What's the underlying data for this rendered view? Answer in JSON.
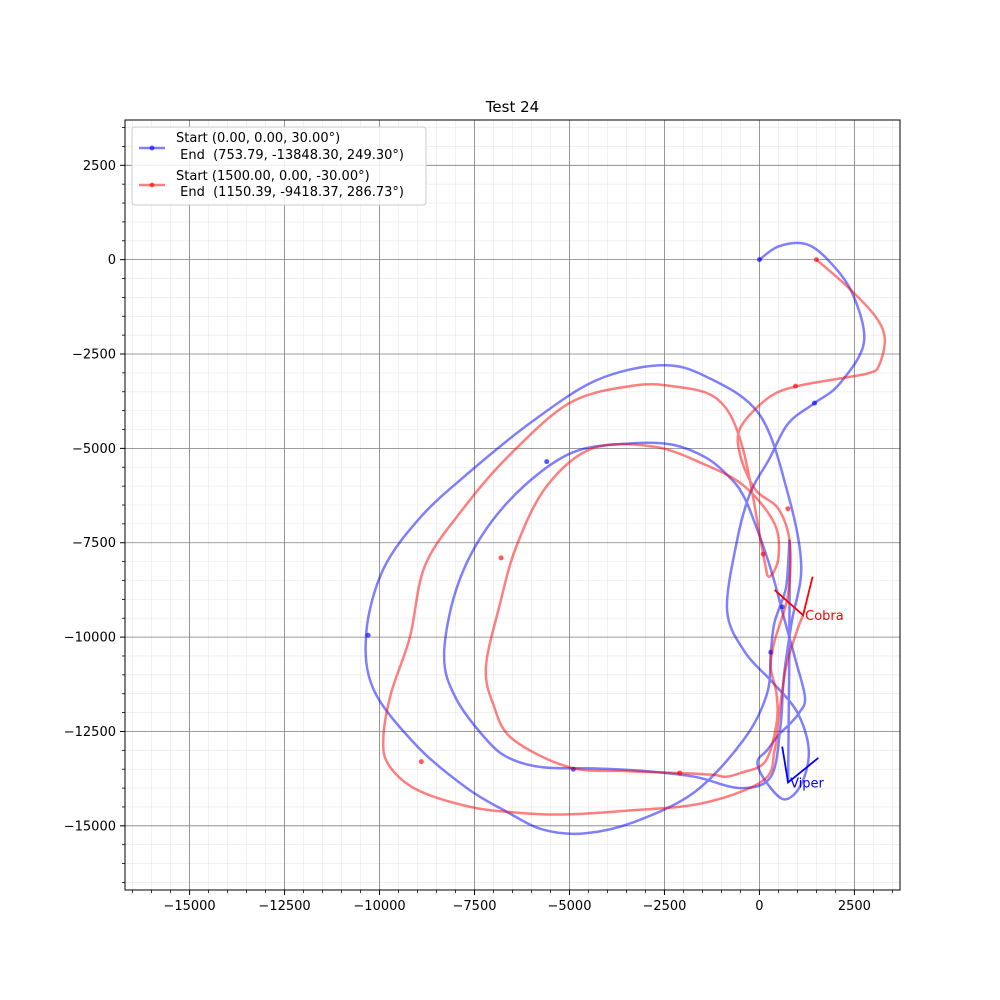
{
  "chart_data": {
    "type": "line",
    "title": "Test 24",
    "xlabel": "",
    "ylabel": "",
    "xlim": [
      -16700,
      3700
    ],
    "ylim": [
      -16700,
      3700
    ],
    "xticks": [
      -15000,
      -12500,
      -10000,
      -7500,
      -5000,
      -2500,
      0,
      2500
    ],
    "xtick_labels": [
      "−15000",
      "−12500",
      "−10000",
      "−7500",
      "−5000",
      "−2500",
      "0",
      "2500"
    ],
    "yticks": [
      2500,
      0,
      -2500,
      -5000,
      -7500,
      -10000,
      -12500,
      -15000
    ],
    "ytick_labels": [
      "2500",
      "0",
      "−2500",
      "−5000",
      "−7500",
      "−10000",
      "−12500",
      "−15000"
    ],
    "grid": true,
    "minor_grid": true,
    "legend_position": "upper-left",
    "series": [
      {
        "name": "Start (0.00, 0.00, 30.00°)\n End  (753.79, -13848.30, 249.30°)",
        "legend_line1": "Start (0.00, 0.00, 30.00°)",
        "legend_line2": " End  (753.79, -13848.30, 249.30°)",
        "color": "#0000ff",
        "x": [
          0,
          500,
          1200,
          1800,
          2450,
          2750,
          2100,
          1450,
          750,
          250,
          -250,
          -600,
          -850,
          -380,
          350,
          1000,
          1300,
          1100,
          650,
          150,
          -50,
          200,
          500,
          800,
          1050,
          1200,
          950,
          650,
          300,
          -150,
          -450,
          -800,
          -1400,
          -2300,
          -3400,
          -4900,
          -6200,
          -7300,
          -8000,
          -8300,
          -8000,
          -7200,
          -6600,
          -5700,
          -4300,
          -3000,
          -1700,
          -500,
          300,
          550,
          650,
          850,
          1100,
          750,
          0,
          -1400,
          -2600,
          -4300,
          -6000,
          -7600,
          -8900,
          -9900,
          -10350,
          -10150,
          -9000,
          -7700,
          -6700,
          -5700,
          -4600,
          -3300,
          -1700,
          -400,
          200,
          300,
          400,
          700,
          800,
          753.79
        ],
        "y": [
          0,
          350,
          420,
          0,
          -900,
          -2200,
          -3300,
          -3800,
          -4350,
          -5300,
          -6200,
          -7500,
          -9300,
          -10400,
          -11200,
          -12000,
          -13000,
          -13900,
          -14300,
          -13800,
          -13300,
          -13000,
          -12600,
          -12300,
          -12000,
          -11600,
          -10600,
          -9500,
          -8200,
          -6900,
          -6200,
          -5750,
          -5250,
          -4900,
          -4870,
          -5100,
          -6000,
          -7300,
          -8800,
          -10500,
          -11600,
          -12700,
          -13200,
          -13450,
          -13480,
          -13550,
          -13700,
          -14000,
          -13700,
          -12400,
          -11000,
          -9600,
          -8100,
          -6200,
          -4100,
          -3100,
          -2800,
          -3200,
          -4300,
          -5600,
          -6800,
          -8200,
          -9900,
          -11400,
          -12900,
          -14000,
          -14600,
          -15100,
          -15200,
          -14900,
          -14100,
          -12700,
          -11500,
          -10400,
          -9600,
          -8700,
          -7700,
          -13848.3
        ],
        "markers_x": [
          0,
          1450,
          600,
          300,
          -4900,
          -5600,
          -10300
        ],
        "markers_y": [
          0,
          -3800,
          -9200,
          -10400,
          -13500,
          -5350,
          -9950
        ]
      },
      {
        "name": "Start (1500.00, 0.00, -30.00°)\n End  (1150.39, -9418.37, 286.73°)",
        "legend_line1": "Start (1500.00, 0.00, -30.00°)",
        "legend_line2": " End  (1150.39, -9418.37, 286.73°)",
        "color": "#ff0000",
        "x": [
          1500,
          2300,
          3050,
          3300,
          3150,
          2900,
          2100,
          1000,
          250,
          -500,
          -500,
          -100,
          500,
          800,
          750,
          400,
          300,
          450,
          450,
          150,
          -500,
          -900,
          -1200,
          -2100,
          -3500,
          -5000,
          -6500,
          -7000,
          -7200,
          -6850,
          -6400,
          -5600,
          -4400,
          -2800,
          -1500,
          -400,
          400,
          500,
          250,
          100,
          -450,
          -1100,
          -2300,
          -3400,
          -5000,
          -6600,
          -7800,
          -8800,
          -9200,
          -9700,
          -9900,
          -9750,
          -9000,
          -7600,
          -6400,
          -5200,
          -3500,
          -1500,
          100,
          400,
          500,
          700,
          1000,
          1150.39
        ],
        "y": [
          0,
          -700,
          -1500,
          -2100,
          -2800,
          -3000,
          -3150,
          -3350,
          -3650,
          -4450,
          -5200,
          -6100,
          -6600,
          -7500,
          -8900,
          -10100,
          -10800,
          -11500,
          -12300,
          -13300,
          -13600,
          -13700,
          -13650,
          -13600,
          -13550,
          -13450,
          -12700,
          -11800,
          -10800,
          -9200,
          -7600,
          -6000,
          -5000,
          -4950,
          -5400,
          -6000,
          -7000,
          -7900,
          -8400,
          -7800,
          -4950,
          -3700,
          -3350,
          -3350,
          -3800,
          -5200,
          -6600,
          -8100,
          -10000,
          -11500,
          -12700,
          -13400,
          -14050,
          -14500,
          -14650,
          -14700,
          -14600,
          -14400,
          -13800,
          -13000,
          -12200,
          -10800,
          -9800,
          -9418.37
        ],
        "markers_x": [
          1500,
          950,
          750,
          100,
          -2100,
          -6800,
          -8900
        ],
        "markers_y": [
          0,
          -3350,
          -6600,
          -7800,
          -13600,
          -7900,
          -13300
        ]
      }
    ],
    "annotations": [
      {
        "text": "Cobra",
        "color": "#ff0000",
        "x": 1150.39,
        "y": -9418.37,
        "heading_x": [
          1150.39,
          1400,
          1150.39,
          400
        ],
        "heading_y": [
          -9418.37,
          -8400,
          -9418.37,
          -8750
        ]
      },
      {
        "text": "Viper",
        "color": "#0000ff",
        "x": 753.79,
        "y": -13848.3,
        "heading_x": [
          753.79,
          600,
          753.79,
          1550
        ],
        "heading_y": [
          -13848.3,
          -12900,
          -13848.3,
          -13200
        ]
      }
    ]
  }
}
